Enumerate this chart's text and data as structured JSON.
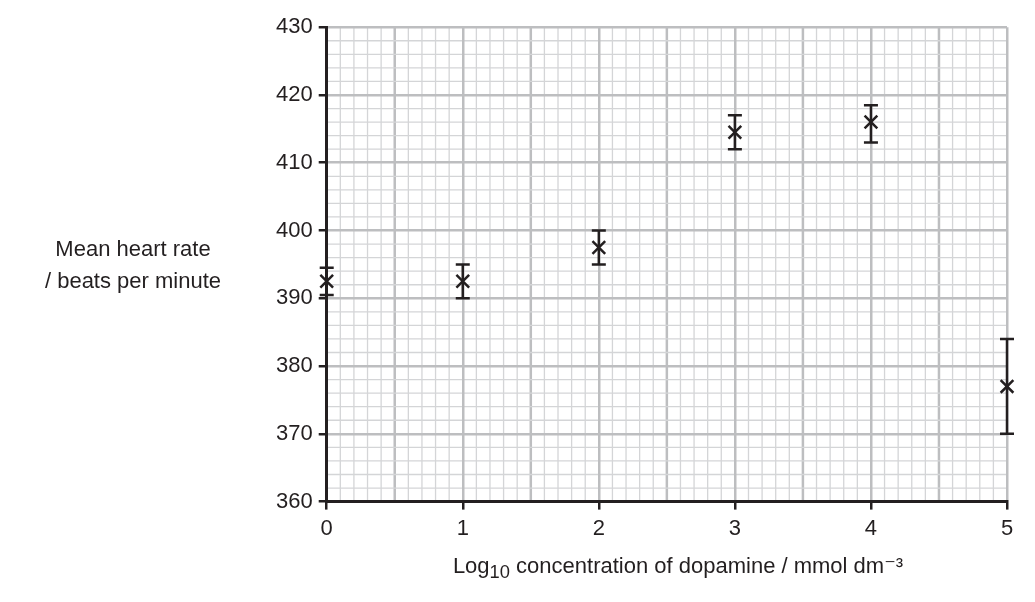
{
  "chart_data": {
    "type": "scatter",
    "xlabel": "Log$_{10}$ concentration of dopamine / mmol dm⁻³",
    "ylabel": "Mean heart rate\n/ beats per minute",
    "x": [
      0,
      1,
      2,
      3,
      4,
      5
    ],
    "values": [
      392.5,
      392.5,
      397.5,
      414.5,
      416,
      377
    ],
    "errors": [
      [
        390.5,
        394.5
      ],
      [
        390,
        395
      ],
      [
        395,
        400
      ],
      [
        412,
        417
      ],
      [
        413,
        418.5
      ],
      [
        370,
        384
      ]
    ],
    "color": "#231f20",
    "marker": "cross",
    "xlim": [
      0,
      5
    ],
    "xticks": [
      0,
      1,
      2,
      3,
      4,
      5
    ],
    "ylim": [
      360,
      430
    ],
    "yticks": [
      360,
      370,
      380,
      390,
      400,
      410,
      420,
      430
    ],
    "grid": true
  }
}
